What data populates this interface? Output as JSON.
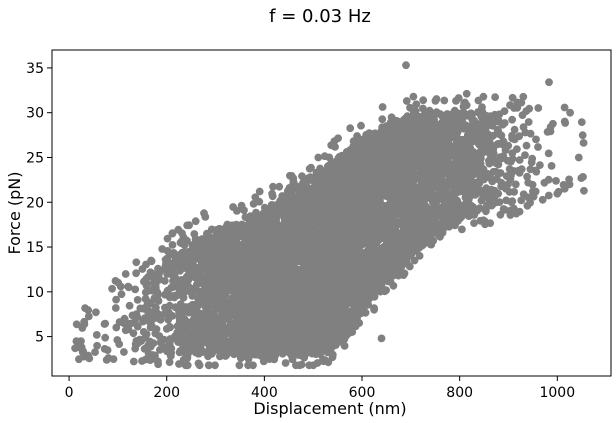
{
  "chart_data": {
    "type": "scatter",
    "title": "f = 0.03 Hz",
    "xlabel": "Displacement (nm)",
    "ylabel": "Force (pN)",
    "xlim": [
      -35,
      1110
    ],
    "ylim": [
      0.6,
      37
    ],
    "xticks": [
      0,
      200,
      400,
      600,
      800,
      1000
    ],
    "yticks": [
      5,
      10,
      15,
      20,
      25,
      30,
      35
    ],
    "grid": false,
    "marker_color": "#808080",
    "series": [
      {
        "marker": "circle",
        "cloud": {
          "description_from_pixels": "Dense elongated point cloud spanning x≈10–1070 nm, y≈2–35 pN, forming a diagonal band (hysteresis-like parallelogram).",
          "n_points_estimate": 6000,
          "upper_edge": [
            [
              10,
              5
            ],
            [
              100,
              9
            ],
            [
              200,
              14
            ],
            [
              300,
              17
            ],
            [
              400,
              19
            ],
            [
              500,
              23
            ],
            [
              600,
              27
            ],
            [
              700,
              30
            ],
            [
              800,
              30
            ],
            [
              900,
              30
            ],
            [
              1000,
              29
            ],
            [
              1060,
              26
            ]
          ],
          "lower_edge": [
            [
              10,
              4
            ],
            [
              100,
              4
            ],
            [
              200,
              3
            ],
            [
              300,
              3
            ],
            [
              400,
              3
            ],
            [
              500,
              3
            ],
            [
              550,
              4
            ],
            [
              600,
              8
            ],
            [
              700,
              14
            ],
            [
              800,
              18
            ],
            [
              900,
              20
            ],
            [
              1000,
              22
            ],
            [
              1060,
              23
            ]
          ]
        },
        "outliers": [
          [
            690,
            35.3
          ],
          [
            983,
            33.4
          ],
          [
            15,
            4.5
          ],
          [
            640,
            4.8
          ]
        ]
      }
    ]
  }
}
